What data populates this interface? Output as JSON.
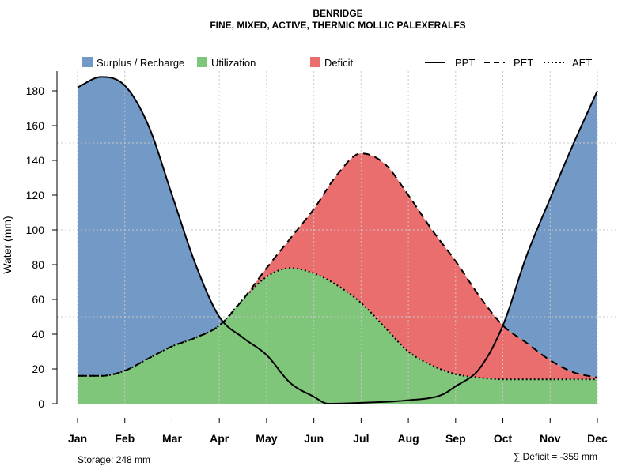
{
  "chart_data": {
    "type": "area",
    "title": "BENRIDGE",
    "subtitle": "FINE, MIXED, ACTIVE, THERMIC MOLLIC PALEXERALFS",
    "xlabel": "",
    "ylabel": "Water (mm)",
    "ylim": [
      0,
      190
    ],
    "yticks": [
      0,
      20,
      40,
      60,
      80,
      100,
      120,
      140,
      160,
      180
    ],
    "categories": [
      "Jan",
      "Feb",
      "Mar",
      "Apr",
      "May",
      "Jun",
      "Jul",
      "Aug",
      "Sep",
      "Oct",
      "Nov",
      "Dec"
    ],
    "grid": true,
    "series": [
      {
        "name": "PPT",
        "style": "solid",
        "x": [
          1,
          1.5,
          2,
          2.5,
          3,
          3.5,
          4,
          4.5,
          5,
          5.5,
          6,
          6.3,
          7,
          8,
          8.7,
          9,
          9.5,
          10,
          10.5,
          11,
          11.5,
          12
        ],
        "values": [
          182,
          188,
          183,
          160,
          120,
          80,
          50,
          38,
          28,
          12,
          4,
          0,
          0.5,
          2,
          5,
          10,
          20,
          45,
          85,
          118,
          150,
          180
        ]
      },
      {
        "name": "PET",
        "style": "dashed",
        "x": [
          1,
          1.5,
          2,
          2.5,
          3,
          3.5,
          4,
          4.5,
          5,
          5.5,
          6,
          6.5,
          7,
          7.5,
          8,
          8.5,
          9,
          9.5,
          10,
          10.5,
          11,
          11.5,
          12
        ],
        "values": [
          16,
          16,
          19,
          26,
          33,
          38,
          45,
          60,
          78,
          95,
          112,
          132,
          144,
          138,
          120,
          100,
          82,
          62,
          45,
          35,
          25,
          18,
          15
        ]
      },
      {
        "name": "AET",
        "style": "dotted",
        "x": [
          1,
          1.5,
          2,
          2.5,
          3,
          3.5,
          4,
          4.5,
          5,
          5.5,
          6,
          6.5,
          7,
          7.5,
          8,
          8.5,
          9,
          9.5,
          10,
          10.5,
          11,
          11.5,
          12
        ],
        "values": [
          16,
          16,
          19,
          26,
          33,
          38,
          45,
          60,
          73,
          78,
          75,
          68,
          58,
          44,
          30,
          22,
          17,
          15,
          14,
          14,
          14,
          14,
          14
        ]
      }
    ],
    "fills": [
      {
        "name": "Surplus / Recharge",
        "color": "#7399c6"
      },
      {
        "name": "Utilization",
        "color": "#7fc67a"
      },
      {
        "name": "Deficit",
        "color": "#ea6e6e"
      }
    ],
    "storage_label": "Storage: 248 mm",
    "deficit_label": "∑ Deficit = -359 mm"
  }
}
